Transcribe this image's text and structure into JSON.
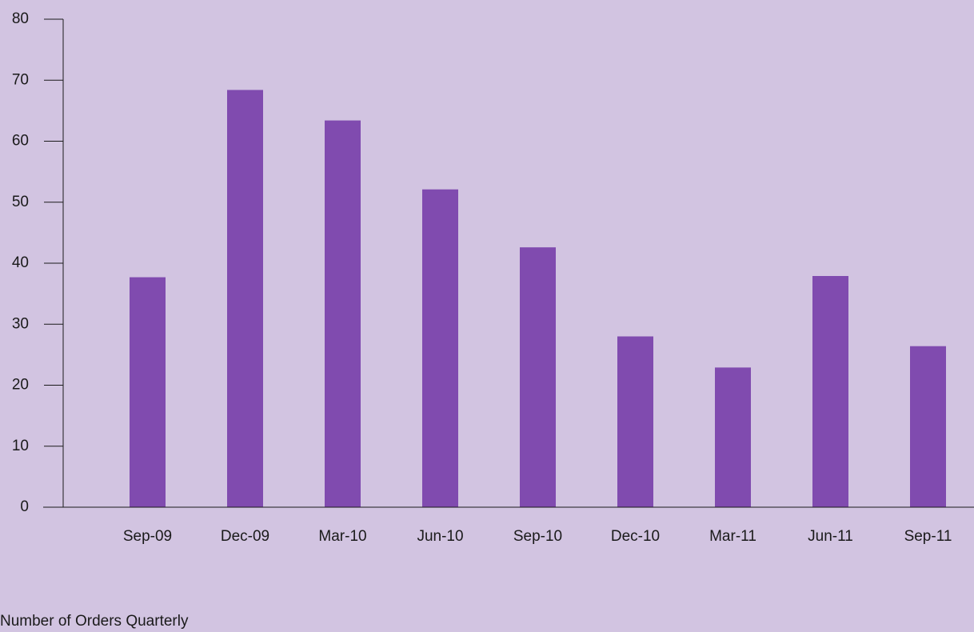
{
  "chart_data": {
    "type": "bar",
    "categories": [
      "Sep-09",
      "Dec-09",
      "Mar-10",
      "Jun-10",
      "Sep-10",
      "Dec-10",
      "Mar-11",
      "Jun-11",
      "Sep-11"
    ],
    "values": [
      37.7,
      68.4,
      63.4,
      52.1,
      42.6,
      28.0,
      22.9,
      37.9,
      26.4
    ],
    "title": "",
    "xlabel": "",
    "ylabel": "",
    "ylim": [
      0,
      80
    ],
    "yticks": [
      0,
      10,
      20,
      30,
      40,
      50,
      60,
      70,
      80
    ],
    "grid": false,
    "bar_color": "#804baf",
    "background_color": "#d2c4e1"
  },
  "caption": "Number of Orders Quarterly"
}
